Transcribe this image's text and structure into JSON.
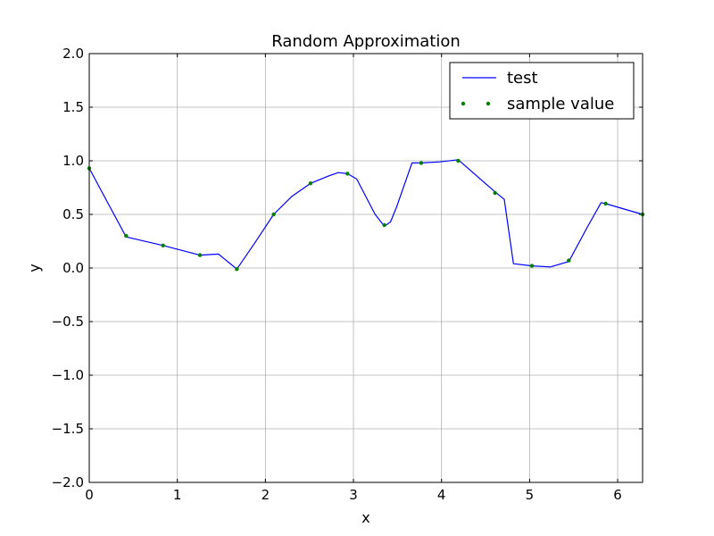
{
  "chart_data": {
    "type": "line",
    "title": "Random Approximation",
    "xlabel": "x",
    "ylabel": "y",
    "xlim": [
      0,
      6.2832
    ],
    "ylim": [
      -2.0,
      2.0
    ],
    "xticks": [
      0,
      1,
      2,
      3,
      4,
      5,
      6
    ],
    "xtick_labels": [
      "0",
      "1",
      "2",
      "3",
      "4",
      "5",
      "6"
    ],
    "yticks": [
      -2.0,
      -1.5,
      -1.0,
      -0.5,
      0.0,
      0.5,
      1.0,
      1.5,
      2.0
    ],
    "ytick_labels": [
      "−2.0",
      "−1.5",
      "−1.0",
      "−0.5",
      "0.0",
      "0.5",
      "1.0",
      "1.5",
      "2.0"
    ],
    "grid": true,
    "legend_position": "top-right",
    "series": [
      {
        "name": "test",
        "kind": "line",
        "color": "#0000ff",
        "x": [
          0,
          0.419,
          0.838,
          1.257,
          1.466,
          1.676,
          1.885,
          2.094,
          2.304,
          2.513,
          2.722,
          2.827,
          2.932,
          3.037,
          3.246,
          3.351,
          3.421,
          3.49,
          3.665,
          3.77,
          3.979,
          4.189,
          4.608,
          4.712,
          4.817,
          5.027,
          5.236,
          5.445,
          5.655,
          5.812,
          5.864,
          6.283
        ],
        "y": [
          0.93,
          0.29,
          0.21,
          0.12,
          0.13,
          -0.01,
          0.24,
          0.5,
          0.67,
          0.79,
          0.86,
          0.89,
          0.88,
          0.83,
          0.5,
          0.39,
          0.43,
          0.57,
          0.98,
          0.98,
          0.99,
          1.01,
          0.71,
          0.64,
          0.04,
          0.02,
          0.01,
          0.06,
          0.38,
          0.61,
          0.6,
          0.5
        ]
      },
      {
        "name": "sample value",
        "kind": "points",
        "color": "#007f00",
        "x": [
          0,
          0.419,
          0.838,
          1.257,
          1.676,
          2.094,
          2.513,
          2.932,
          3.351,
          3.77,
          4.189,
          4.608,
          5.027,
          5.445,
          5.864,
          6.283
        ],
        "y": [
          0.93,
          0.3,
          0.21,
          0.12,
          -0.01,
          0.5,
          0.79,
          0.88,
          0.4,
          0.98,
          1.0,
          0.7,
          0.02,
          0.07,
          0.6,
          0.5
        ]
      }
    ]
  }
}
